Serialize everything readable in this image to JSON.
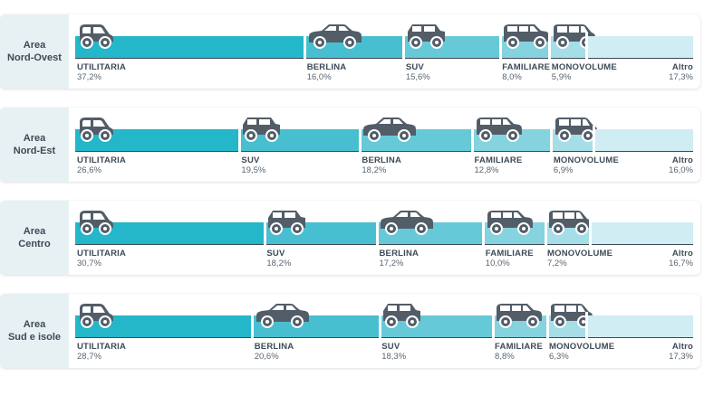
{
  "colors": {
    "shades": [
      "#24b6c9",
      "#48bfd0",
      "#66c9d8",
      "#84d3df",
      "#a6dee8",
      "#cfedf3"
    ],
    "car": "#525d68"
  },
  "chart_data": {
    "type": "stacked-bar",
    "categories": [
      "Area Nord-Ovest",
      "Area Nord-Est",
      "Area Centro",
      "Area Sud e isole"
    ],
    "unit": "%",
    "rows": [
      {
        "region_line1": "Area",
        "region_line2": "Nord-Ovest",
        "segments": [
          {
            "label": "UTILITARIA",
            "value": 37.2,
            "display": "37,2%",
            "icon": "city-car-icon"
          },
          {
            "label": "BERLINA",
            "value": 16.0,
            "display": "16,0%",
            "icon": "sedan-icon"
          },
          {
            "label": "SUV",
            "value": 15.6,
            "display": "15,6%",
            "icon": "suv-icon"
          },
          {
            "label": "FAMILIARE",
            "value": 8.0,
            "display": "8,0%",
            "icon": "station-wagon-icon"
          },
          {
            "label": "MONOVOLUME",
            "value": 5.9,
            "display": "5,9%",
            "icon": "minivan-icon"
          },
          {
            "label": "Altro",
            "value": 17.3,
            "display": "17,3%",
            "icon": ""
          }
        ]
      },
      {
        "region_line1": "Area",
        "region_line2": "Nord-Est",
        "segments": [
          {
            "label": "UTILITARIA",
            "value": 26.6,
            "display": "26,6%",
            "icon": "city-car-icon"
          },
          {
            "label": "SUV",
            "value": 19.5,
            "display": "19,5%",
            "icon": "suv-icon"
          },
          {
            "label": "BERLINA",
            "value": 18.2,
            "display": "18,2%",
            "icon": "sedan-icon"
          },
          {
            "label": "FAMILIARE",
            "value": 12.8,
            "display": "12,8%",
            "icon": "station-wagon-icon"
          },
          {
            "label": "MONOVOLUME",
            "value": 6.9,
            "display": "6,9%",
            "icon": "minivan-icon"
          },
          {
            "label": "Altro",
            "value": 16.0,
            "display": "16,0%",
            "icon": ""
          }
        ]
      },
      {
        "region_line1": "Area",
        "region_line2": "Centro",
        "segments": [
          {
            "label": "UTILITARIA",
            "value": 30.7,
            "display": "30,7%",
            "icon": "city-car-icon"
          },
          {
            "label": "SUV",
            "value": 18.2,
            "display": "18,2%",
            "icon": "suv-icon"
          },
          {
            "label": "BERLINA",
            "value": 17.2,
            "display": "17,2%",
            "icon": "sedan-icon"
          },
          {
            "label": "FAMILIARE",
            "value": 10.0,
            "display": "10,0%",
            "icon": "station-wagon-icon"
          },
          {
            "label": "MONOVOLUME",
            "value": 7.2,
            "display": "7,2%",
            "icon": "minivan-icon"
          },
          {
            "label": "Altro",
            "value": 16.7,
            "display": "16,7%",
            "icon": ""
          }
        ]
      },
      {
        "region_line1": "Area",
        "region_line2": "Sud e isole",
        "segments": [
          {
            "label": "UTILITARIA",
            "value": 28.7,
            "display": "28,7%",
            "icon": "city-car-icon"
          },
          {
            "label": "BERLINA",
            "value": 20.6,
            "display": "20,6%",
            "icon": "sedan-icon"
          },
          {
            "label": "SUV",
            "value": 18.3,
            "display": "18,3%",
            "icon": "suv-icon"
          },
          {
            "label": "FAMILIARE",
            "value": 8.8,
            "display": "8,8%",
            "icon": "station-wagon-icon"
          },
          {
            "label": "MONOVOLUME",
            "value": 6.3,
            "display": "6,3%",
            "icon": "minivan-icon"
          },
          {
            "label": "Altro",
            "value": 17.3,
            "display": "17,3%",
            "icon": ""
          }
        ]
      }
    ]
  }
}
